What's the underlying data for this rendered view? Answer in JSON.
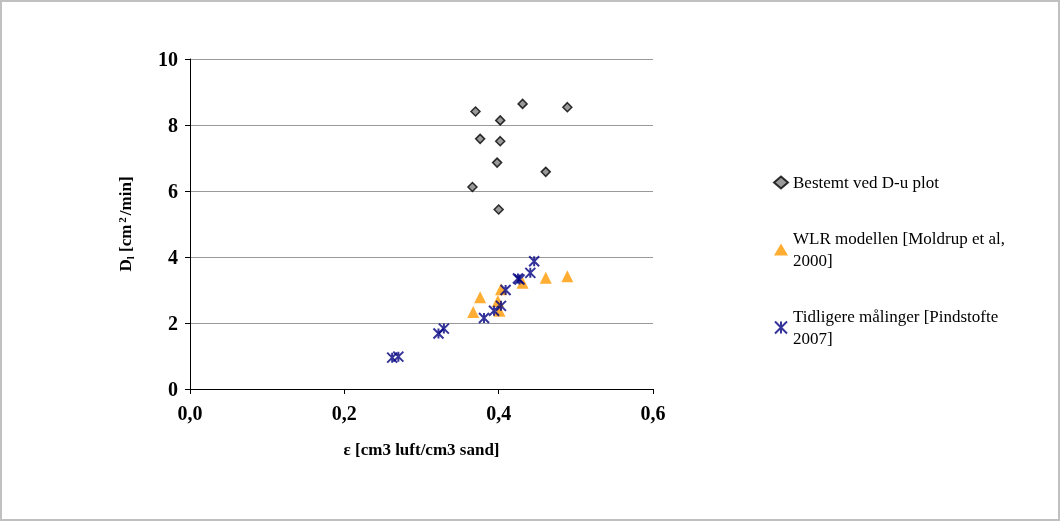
{
  "chart_data": {
    "type": "scatter",
    "xlabel": "ε [cm3 luft/cm3 sand]",
    "ylabel": "D$_{l}$ [cm$^{2}$/min]",
    "xlim": [
      0,
      0.6
    ],
    "xticks": [
      {
        "value": 0,
        "label": "0,0"
      },
      {
        "value": 0.2,
        "label": "0,2"
      },
      {
        "value": 0.4,
        "label": "0,4"
      },
      {
        "value": 0.6,
        "label": "0,6"
      }
    ],
    "ylim": [
      0,
      10
    ],
    "yticks": [
      0,
      2,
      4,
      6,
      8,
      10
    ],
    "grid": "y",
    "legend": "right",
    "series": [
      {
        "name": "Bestemt ved D-u plot",
        "color": "#808080",
        "marker": "diamond",
        "x": [
          0.37,
          0.431,
          0.489,
          0.402,
          0.376,
          0.402,
          0.398,
          0.461,
          0.366,
          0.4
        ],
        "values": [
          8.41,
          8.64,
          8.54,
          8.14,
          7.58,
          7.51,
          6.86,
          6.58,
          6.12,
          5.44
        ]
      },
      {
        "name": "WLR modellen [Moldrup et al, 2000]",
        "color": "#ff9900",
        "marker": "triangle",
        "x": [
          0.489,
          0.461,
          0.431,
          0.403,
          0.399,
          0.376,
          0.367,
          0.401
        ],
        "values": [
          3.42,
          3.37,
          3.22,
          3.02,
          2.67,
          2.78,
          2.33,
          2.37
        ]
      },
      {
        "name": "Tidligere målinger [Pindstofte 2007]",
        "color": "#000080",
        "marker": "cross",
        "x": [
          0.446,
          0.441,
          0.427,
          0.425,
          0.409,
          0.403,
          0.394,
          0.381,
          0.329,
          0.322,
          0.262,
          0.27
        ],
        "values": [
          3.87,
          3.52,
          3.32,
          3.35,
          3.0,
          2.52,
          2.37,
          2.15,
          1.83,
          1.68,
          0.95,
          0.98
        ]
      }
    ]
  }
}
